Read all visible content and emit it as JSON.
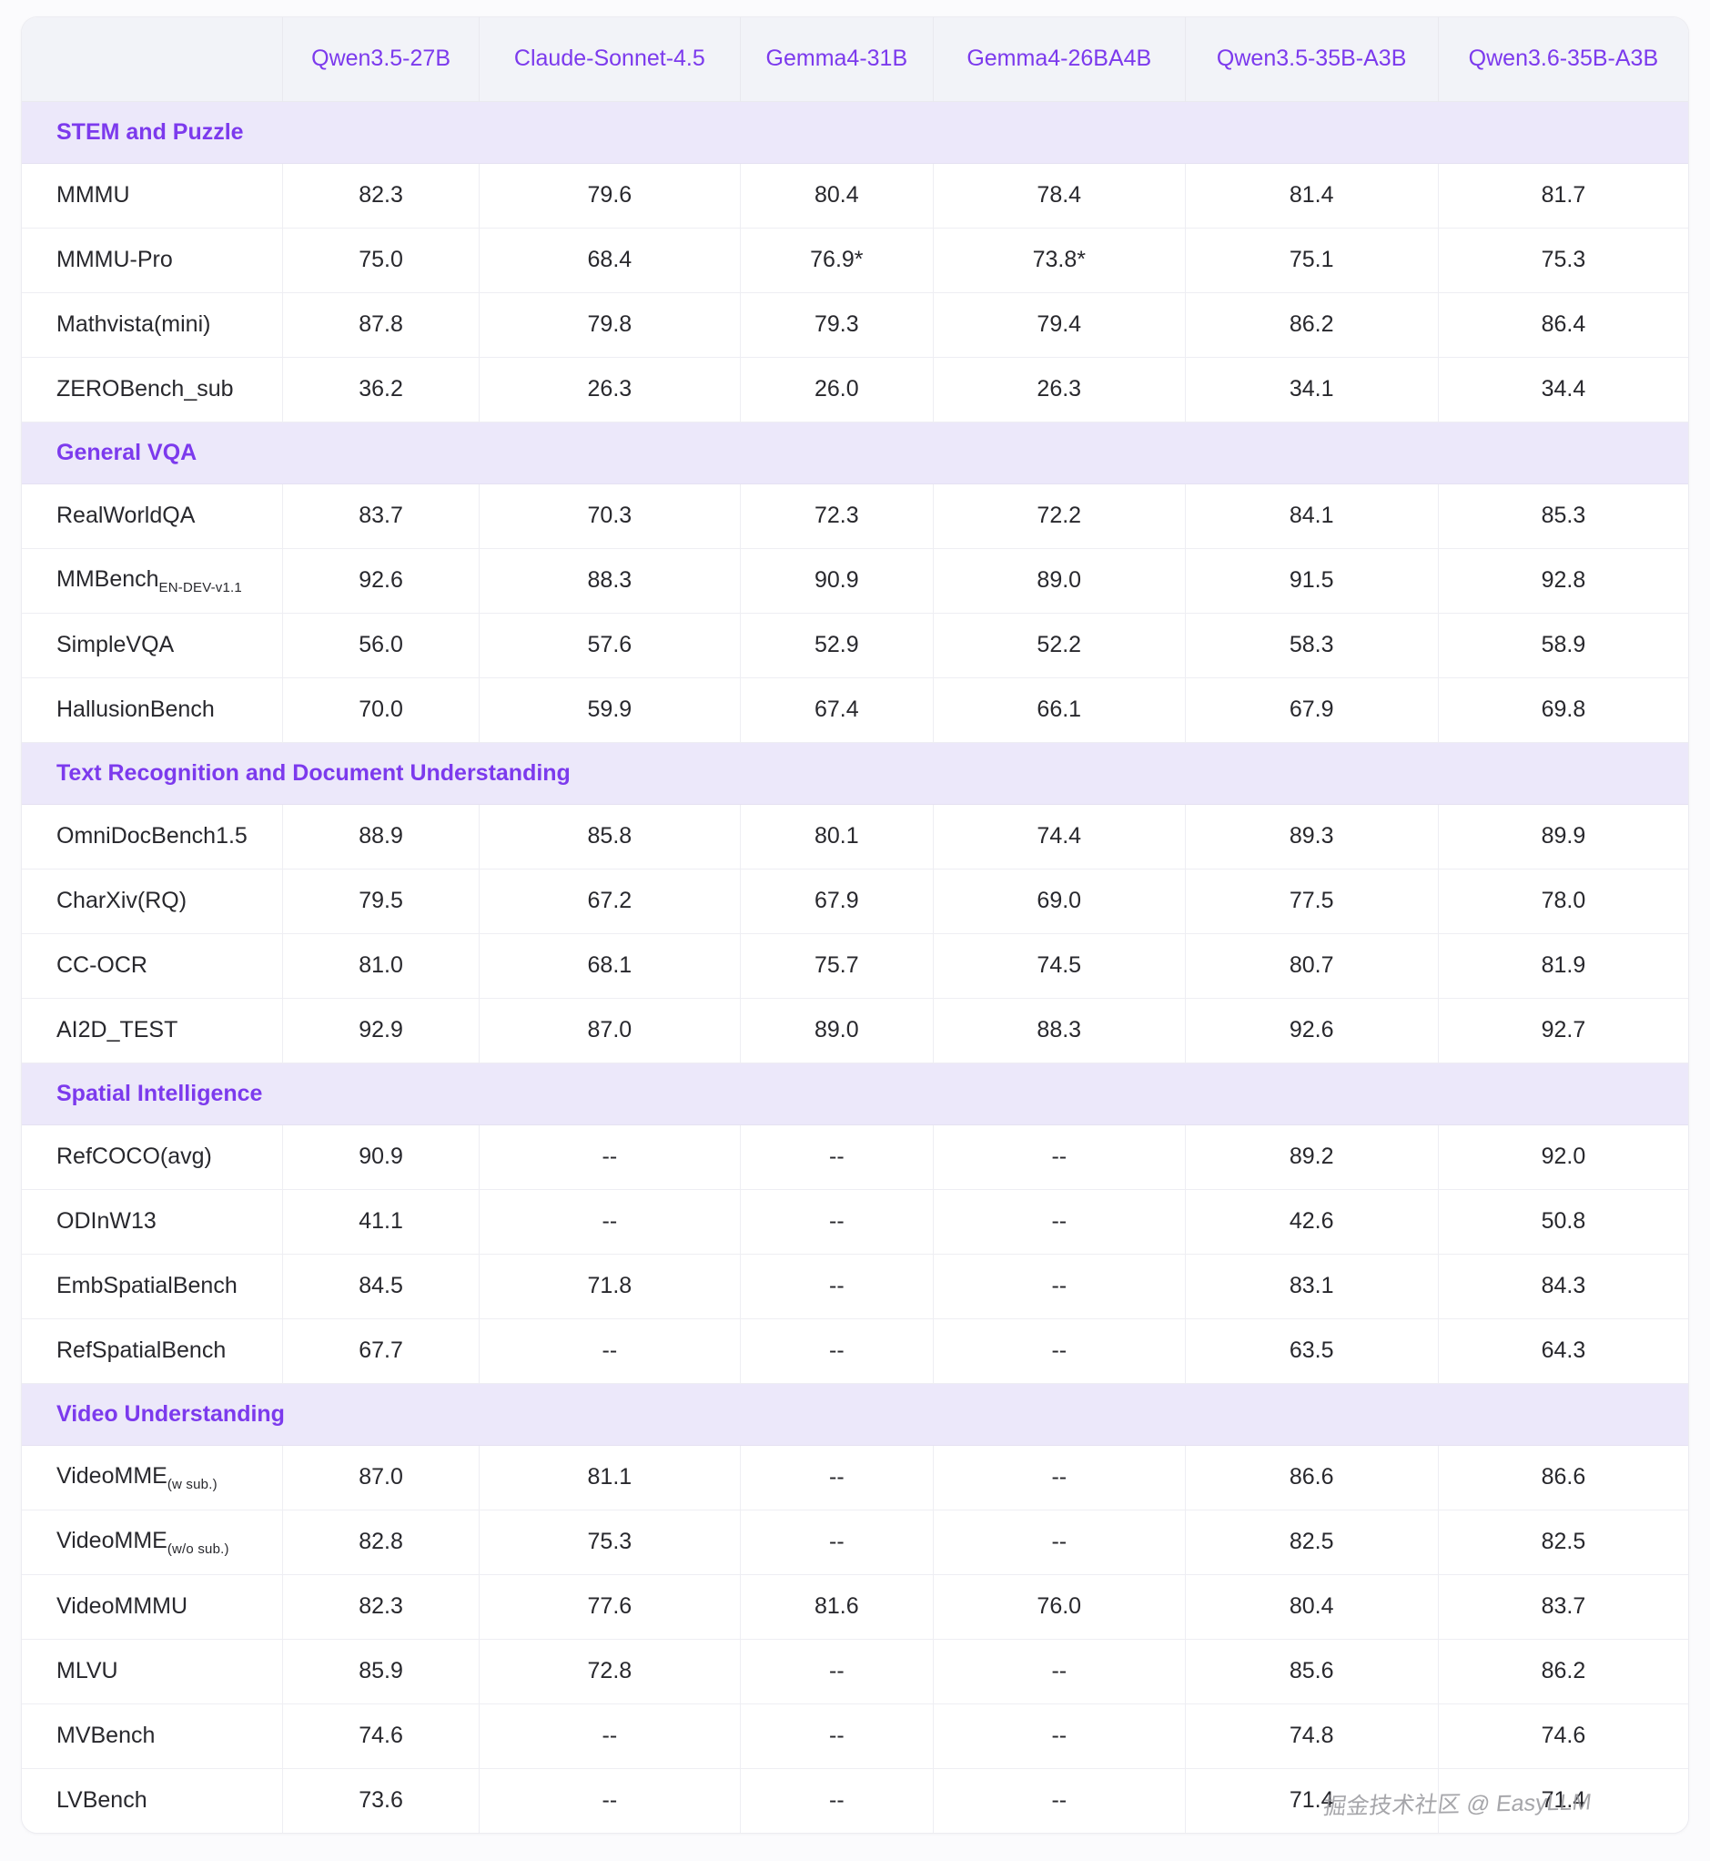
{
  "colors": {
    "accent": "#7c3aed",
    "header_bg": "#f2f3f8",
    "section_bg": "#ece8fa",
    "border": "#e9e9ef",
    "text": "#28282d",
    "page_bg": "#fbfbfd",
    "watermark": "#97979c"
  },
  "watermark": "掘金技术社区 @ EasyLLM",
  "table": {
    "columns": [
      "Qwen3.5-27B",
      "Claude-Sonnet-4.5",
      "Gemma4-31B",
      "Gemma4-26BA4B",
      "Qwen3.5-35B-A3B",
      "Qwen3.6-35B-A3B"
    ],
    "sections": [
      {
        "title": "STEM and Puzzle",
        "rows": [
          {
            "name": "MMMU",
            "values": [
              "82.3",
              "79.6",
              "80.4",
              "78.4",
              "81.4",
              "81.7"
            ]
          },
          {
            "name": "MMMU-Pro",
            "values": [
              "75.0",
              "68.4",
              "76.9*",
              "73.8*",
              "75.1",
              "75.3"
            ]
          },
          {
            "name": "Mathvista(mini)",
            "values": [
              "87.8",
              "79.8",
              "79.3",
              "79.4",
              "86.2",
              "86.4"
            ]
          },
          {
            "name": "ZEROBench_sub",
            "values": [
              "36.2",
              "26.3",
              "26.0",
              "26.3",
              "34.1",
              "34.4"
            ]
          }
        ]
      },
      {
        "title": "General VQA",
        "rows": [
          {
            "name": "RealWorldQA",
            "values": [
              "83.7",
              "70.3",
              "72.3",
              "72.2",
              "84.1",
              "85.3"
            ]
          },
          {
            "name": "MMBench",
            "sub": "EN-DEV-v1.1",
            "values": [
              "92.6",
              "88.3",
              "90.9",
              "89.0",
              "91.5",
              "92.8"
            ]
          },
          {
            "name": "SimpleVQA",
            "values": [
              "56.0",
              "57.6",
              "52.9",
              "52.2",
              "58.3",
              "58.9"
            ]
          },
          {
            "name": "HallusionBench",
            "values": [
              "70.0",
              "59.9",
              "67.4",
              "66.1",
              "67.9",
              "69.8"
            ]
          }
        ]
      },
      {
        "title": "Text Recognition and Document Understanding",
        "rows": [
          {
            "name": "OmniDocBench1.5",
            "values": [
              "88.9",
              "85.8",
              "80.1",
              "74.4",
              "89.3",
              "89.9"
            ]
          },
          {
            "name": "CharXiv(RQ)",
            "values": [
              "79.5",
              "67.2",
              "67.9",
              "69.0",
              "77.5",
              "78.0"
            ]
          },
          {
            "name": "CC-OCR",
            "values": [
              "81.0",
              "68.1",
              "75.7",
              "74.5",
              "80.7",
              "81.9"
            ]
          },
          {
            "name": "AI2D_TEST",
            "values": [
              "92.9",
              "87.0",
              "89.0",
              "88.3",
              "92.6",
              "92.7"
            ]
          }
        ]
      },
      {
        "title": "Spatial Intelligence",
        "rows": [
          {
            "name": "RefCOCO(avg)",
            "values": [
              "90.9",
              "--",
              "--",
              "--",
              "89.2",
              "92.0"
            ]
          },
          {
            "name": "ODInW13",
            "values": [
              "41.1",
              "--",
              "--",
              "--",
              "42.6",
              "50.8"
            ]
          },
          {
            "name": "EmbSpatialBench",
            "values": [
              "84.5",
              "71.8",
              "--",
              "--",
              "83.1",
              "84.3"
            ]
          },
          {
            "name": "RefSpatialBench",
            "values": [
              "67.7",
              "--",
              "--",
              "--",
              "63.5",
              "64.3"
            ]
          }
        ]
      },
      {
        "title": "Video Understanding",
        "rows": [
          {
            "name": "VideoMME",
            "sub": "(w sub.)",
            "values": [
              "87.0",
              "81.1",
              "--",
              "--",
              "86.6",
              "86.6"
            ]
          },
          {
            "name": "VideoMME",
            "sub": "(w/o sub.)",
            "values": [
              "82.8",
              "75.3",
              "--",
              "--",
              "82.5",
              "82.5"
            ]
          },
          {
            "name": "VideoMMMU",
            "values": [
              "82.3",
              "77.6",
              "81.6",
              "76.0",
              "80.4",
              "83.7"
            ]
          },
          {
            "name": "MLVU",
            "values": [
              "85.9",
              "72.8",
              "--",
              "--",
              "85.6",
              "86.2"
            ]
          },
          {
            "name": "MVBench",
            "values": [
              "74.6",
              "--",
              "--",
              "--",
              "74.8",
              "74.6"
            ]
          },
          {
            "name": "LVBench",
            "values": [
              "73.6",
              "--",
              "--",
              "--",
              "71.4",
              "71.4"
            ]
          }
        ]
      }
    ]
  }
}
